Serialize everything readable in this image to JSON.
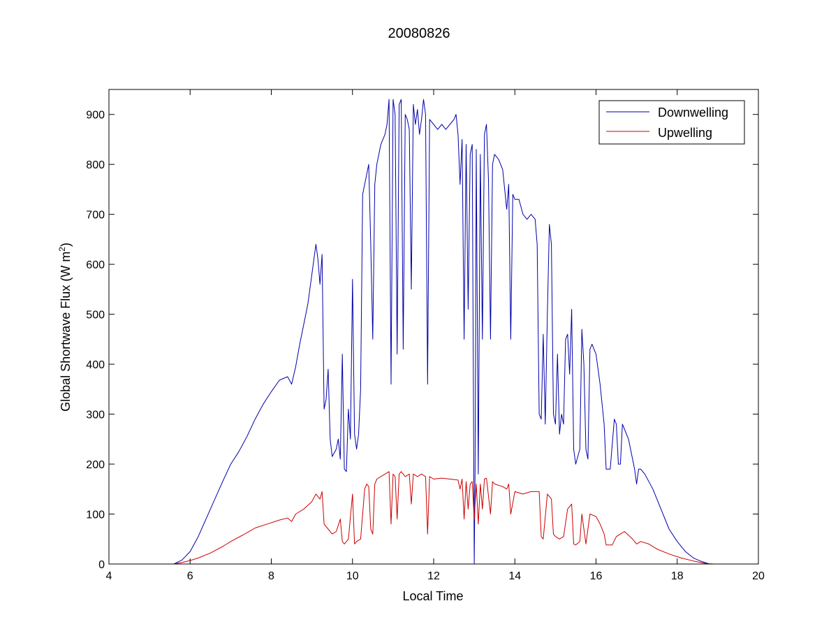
{
  "chart_data": {
    "type": "line",
    "title": "20080826",
    "xlabel": "Local Time",
    "ylabel": {
      "text": "Global Shortwave Flux (W m",
      "sup": "2",
      "close": ")"
    },
    "xlim": [
      4,
      20
    ],
    "ylim": [
      0,
      950
    ],
    "xticks": [
      4,
      6,
      8,
      10,
      12,
      14,
      16,
      18,
      20
    ],
    "yticks": [
      0,
      100,
      200,
      300,
      400,
      500,
      600,
      700,
      800,
      900
    ],
    "grid": false,
    "legend_position": "top-right",
    "series": [
      {
        "name": "Downwelling",
        "color": "#0000aa",
        "points": [
          [
            4.0,
            0
          ],
          [
            5.0,
            0
          ],
          [
            5.6,
            0
          ],
          [
            5.8,
            8
          ],
          [
            6.0,
            25
          ],
          [
            6.2,
            55
          ],
          [
            6.5,
            110
          ],
          [
            6.8,
            165
          ],
          [
            7.0,
            200
          ],
          [
            7.2,
            225
          ],
          [
            7.4,
            255
          ],
          [
            7.6,
            290
          ],
          [
            7.8,
            320
          ],
          [
            8.0,
            345
          ],
          [
            8.2,
            368
          ],
          [
            8.4,
            375
          ],
          [
            8.5,
            360
          ],
          [
            8.6,
            395
          ],
          [
            8.7,
            440
          ],
          [
            8.8,
            480
          ],
          [
            8.9,
            520
          ],
          [
            9.0,
            580
          ],
          [
            9.1,
            640
          ],
          [
            9.15,
            610
          ],
          [
            9.2,
            560
          ],
          [
            9.25,
            620
          ],
          [
            9.3,
            310
          ],
          [
            9.35,
            330
          ],
          [
            9.4,
            390
          ],
          [
            9.45,
            250
          ],
          [
            9.5,
            215
          ],
          [
            9.6,
            230
          ],
          [
            9.65,
            250
          ],
          [
            9.7,
            210
          ],
          [
            9.75,
            420
          ],
          [
            9.8,
            190
          ],
          [
            9.85,
            185
          ],
          [
            9.9,
            310
          ],
          [
            9.95,
            250
          ],
          [
            10.0,
            570
          ],
          [
            10.05,
            260
          ],
          [
            10.1,
            230
          ],
          [
            10.15,
            260
          ],
          [
            10.2,
            350
          ],
          [
            10.25,
            740
          ],
          [
            10.3,
            760
          ],
          [
            10.35,
            780
          ],
          [
            10.4,
            800
          ],
          [
            10.45,
            640
          ],
          [
            10.5,
            450
          ],
          [
            10.55,
            760
          ],
          [
            10.6,
            800
          ],
          [
            10.7,
            840
          ],
          [
            10.8,
            860
          ],
          [
            10.85,
            880
          ],
          [
            10.9,
            930
          ],
          [
            10.95,
            360
          ],
          [
            11.0,
            930
          ],
          [
            11.05,
            900
          ],
          [
            11.1,
            420
          ],
          [
            11.15,
            920
          ],
          [
            11.2,
            930
          ],
          [
            11.25,
            430
          ],
          [
            11.3,
            900
          ],
          [
            11.35,
            890
          ],
          [
            11.4,
            870
          ],
          [
            11.45,
            550
          ],
          [
            11.5,
            920
          ],
          [
            11.55,
            880
          ],
          [
            11.6,
            910
          ],
          [
            11.65,
            860
          ],
          [
            11.7,
            890
          ],
          [
            11.75,
            930
          ],
          [
            11.8,
            900
          ],
          [
            11.85,
            360
          ],
          [
            11.9,
            890
          ],
          [
            12.0,
            880
          ],
          [
            12.1,
            870
          ],
          [
            12.2,
            880
          ],
          [
            12.3,
            870
          ],
          [
            12.4,
            880
          ],
          [
            12.5,
            890
          ],
          [
            12.55,
            900
          ],
          [
            12.6,
            860
          ],
          [
            12.65,
            760
          ],
          [
            12.7,
            850
          ],
          [
            12.75,
            450
          ],
          [
            12.8,
            840
          ],
          [
            12.85,
            510
          ],
          [
            12.9,
            820
          ],
          [
            12.95,
            840
          ],
          [
            13.0,
            0
          ],
          [
            13.02,
            190
          ],
          [
            13.05,
            830
          ],
          [
            13.1,
            180
          ],
          [
            13.15,
            820
          ],
          [
            13.2,
            450
          ],
          [
            13.25,
            860
          ],
          [
            13.3,
            880
          ],
          [
            13.35,
            770
          ],
          [
            13.4,
            450
          ],
          [
            13.45,
            800
          ],
          [
            13.5,
            820
          ],
          [
            13.6,
            810
          ],
          [
            13.7,
            790
          ],
          [
            13.75,
            750
          ],
          [
            13.8,
            710
          ],
          [
            13.85,
            760
          ],
          [
            13.9,
            450
          ],
          [
            13.95,
            740
          ],
          [
            14.0,
            730
          ],
          [
            14.1,
            730
          ],
          [
            14.2,
            700
          ],
          [
            14.3,
            690
          ],
          [
            14.4,
            700
          ],
          [
            14.5,
            690
          ],
          [
            14.55,
            640
          ],
          [
            14.6,
            300
          ],
          [
            14.65,
            290
          ],
          [
            14.7,
            460
          ],
          [
            14.75,
            280
          ],
          [
            14.8,
            500
          ],
          [
            14.85,
            680
          ],
          [
            14.9,
            640
          ],
          [
            14.95,
            300
          ],
          [
            15.0,
            280
          ],
          [
            15.05,
            420
          ],
          [
            15.1,
            260
          ],
          [
            15.15,
            300
          ],
          [
            15.2,
            280
          ],
          [
            15.25,
            450
          ],
          [
            15.3,
            460
          ],
          [
            15.35,
            380
          ],
          [
            15.4,
            510
          ],
          [
            15.45,
            230
          ],
          [
            15.5,
            200
          ],
          [
            15.6,
            230
          ],
          [
            15.65,
            470
          ],
          [
            15.7,
            400
          ],
          [
            15.75,
            230
          ],
          [
            15.8,
            210
          ],
          [
            15.85,
            430
          ],
          [
            15.9,
            440
          ],
          [
            16.0,
            420
          ],
          [
            16.1,
            360
          ],
          [
            16.2,
            280
          ],
          [
            16.25,
            190
          ],
          [
            16.35,
            190
          ],
          [
            16.45,
            290
          ],
          [
            16.5,
            280
          ],
          [
            16.55,
            200
          ],
          [
            16.6,
            200
          ],
          [
            16.65,
            280
          ],
          [
            16.7,
            270
          ],
          [
            16.8,
            250
          ],
          [
            16.9,
            210
          ],
          [
            16.95,
            190
          ],
          [
            17.0,
            160
          ],
          [
            17.05,
            190
          ],
          [
            17.1,
            190
          ],
          [
            17.2,
            180
          ],
          [
            17.4,
            150
          ],
          [
            17.6,
            110
          ],
          [
            17.8,
            70
          ],
          [
            18.0,
            45
          ],
          [
            18.2,
            25
          ],
          [
            18.4,
            12
          ],
          [
            18.6,
            5
          ],
          [
            18.8,
            0
          ],
          [
            18.9,
            0
          ]
        ]
      },
      {
        "name": "Upwelling",
        "color": "#cc0000",
        "points": [
          [
            4.0,
            0
          ],
          [
            5.0,
            0
          ],
          [
            5.6,
            0
          ],
          [
            5.8,
            3
          ],
          [
            6.0,
            7
          ],
          [
            6.2,
            12
          ],
          [
            6.5,
            22
          ],
          [
            6.8,
            35
          ],
          [
            7.0,
            45
          ],
          [
            7.3,
            58
          ],
          [
            7.6,
            72
          ],
          [
            7.9,
            80
          ],
          [
            8.2,
            88
          ],
          [
            8.4,
            92
          ],
          [
            8.5,
            85
          ],
          [
            8.6,
            100
          ],
          [
            8.8,
            110
          ],
          [
            9.0,
            125
          ],
          [
            9.1,
            140
          ],
          [
            9.2,
            130
          ],
          [
            9.25,
            145
          ],
          [
            9.3,
            80
          ],
          [
            9.4,
            70
          ],
          [
            9.5,
            60
          ],
          [
            9.6,
            65
          ],
          [
            9.7,
            90
          ],
          [
            9.75,
            45
          ],
          [
            9.8,
            40
          ],
          [
            9.9,
            50
          ],
          [
            10.0,
            140
          ],
          [
            10.05,
            40
          ],
          [
            10.1,
            45
          ],
          [
            10.2,
            50
          ],
          [
            10.3,
            150
          ],
          [
            10.35,
            160
          ],
          [
            10.4,
            155
          ],
          [
            10.45,
            70
          ],
          [
            10.5,
            60
          ],
          [
            10.55,
            160
          ],
          [
            10.6,
            170
          ],
          [
            10.7,
            175
          ],
          [
            10.8,
            180
          ],
          [
            10.9,
            185
          ],
          [
            10.95,
            80
          ],
          [
            11.0,
            180
          ],
          [
            11.05,
            175
          ],
          [
            11.1,
            90
          ],
          [
            11.15,
            180
          ],
          [
            11.2,
            185
          ],
          [
            11.3,
            175
          ],
          [
            11.4,
            180
          ],
          [
            11.45,
            120
          ],
          [
            11.5,
            180
          ],
          [
            11.6,
            175
          ],
          [
            11.7,
            180
          ],
          [
            11.8,
            175
          ],
          [
            11.85,
            60
          ],
          [
            11.9,
            175
          ],
          [
            12.0,
            170
          ],
          [
            12.2,
            172
          ],
          [
            12.4,
            170
          ],
          [
            12.6,
            168
          ],
          [
            12.65,
            150
          ],
          [
            12.7,
            170
          ],
          [
            12.75,
            90
          ],
          [
            12.8,
            165
          ],
          [
            12.85,
            110
          ],
          [
            12.9,
            160
          ],
          [
            12.95,
            165
          ],
          [
            13.0,
            90
          ],
          [
            13.05,
            160
          ],
          [
            13.1,
            80
          ],
          [
            13.15,
            160
          ],
          [
            13.2,
            110
          ],
          [
            13.25,
            170
          ],
          [
            13.3,
            172
          ],
          [
            13.4,
            100
          ],
          [
            13.45,
            165
          ],
          [
            13.5,
            160
          ],
          [
            13.7,
            155
          ],
          [
            13.8,
            150
          ],
          [
            13.85,
            160
          ],
          [
            13.9,
            100
          ],
          [
            14.0,
            145
          ],
          [
            14.2,
            140
          ],
          [
            14.4,
            145
          ],
          [
            14.6,
            145
          ],
          [
            14.65,
            55
          ],
          [
            14.7,
            50
          ],
          [
            14.8,
            140
          ],
          [
            14.9,
            130
          ],
          [
            14.95,
            60
          ],
          [
            15.0,
            55
          ],
          [
            15.1,
            50
          ],
          [
            15.2,
            55
          ],
          [
            15.3,
            110
          ],
          [
            15.4,
            120
          ],
          [
            15.45,
            40
          ],
          [
            15.5,
            38
          ],
          [
            15.6,
            45
          ],
          [
            15.65,
            100
          ],
          [
            15.75,
            40
          ],
          [
            15.85,
            100
          ],
          [
            16.0,
            95
          ],
          [
            16.1,
            80
          ],
          [
            16.2,
            60
          ],
          [
            16.25,
            38
          ],
          [
            16.4,
            38
          ],
          [
            16.5,
            55
          ],
          [
            16.7,
            65
          ],
          [
            16.9,
            50
          ],
          [
            17.0,
            40
          ],
          [
            17.1,
            45
          ],
          [
            17.3,
            40
          ],
          [
            17.5,
            30
          ],
          [
            17.8,
            20
          ],
          [
            18.1,
            12
          ],
          [
            18.4,
            6
          ],
          [
            18.7,
            1
          ],
          [
            18.9,
            0
          ]
        ]
      }
    ]
  }
}
